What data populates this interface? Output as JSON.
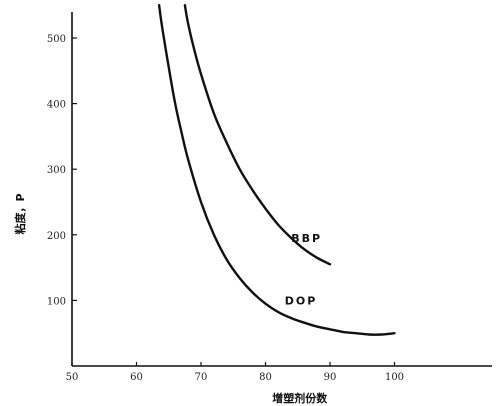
{
  "chart_data": {
    "type": "line",
    "title": "",
    "xlabel": "增塑剂份数",
    "ylabel": "粘度，P",
    "xlim": [
      50,
      110
    ],
    "ylim": [
      0,
      550
    ],
    "x_ticks": [
      50,
      60,
      70,
      80,
      90,
      100
    ],
    "y_ticks": [
      100,
      200,
      300,
      400,
      500
    ],
    "grid": false,
    "series": [
      {
        "name": "BBP",
        "color": "#111111",
        "x": [
          67.5,
          68,
          69,
          70,
          72,
          74,
          76,
          78,
          80,
          82,
          84,
          86,
          88,
          90
        ],
        "y": [
          550,
          522,
          480,
          445,
          385,
          340,
          300,
          268,
          240,
          215,
          195,
          178,
          165,
          155
        ]
      },
      {
        "name": "DOP",
        "color": "#111111",
        "x": [
          63.5,
          64,
          65,
          66,
          67,
          68,
          70,
          72,
          74,
          76,
          78,
          80,
          82,
          84,
          86,
          88,
          90,
          92,
          94,
          96,
          98,
          100
        ],
        "y": [
          550,
          515,
          455,
          400,
          355,
          315,
          250,
          200,
          162,
          134,
          112,
          95,
          82,
          73,
          66,
          60,
          56,
          52,
          50,
          48,
          48,
          50
        ]
      }
    ]
  }
}
